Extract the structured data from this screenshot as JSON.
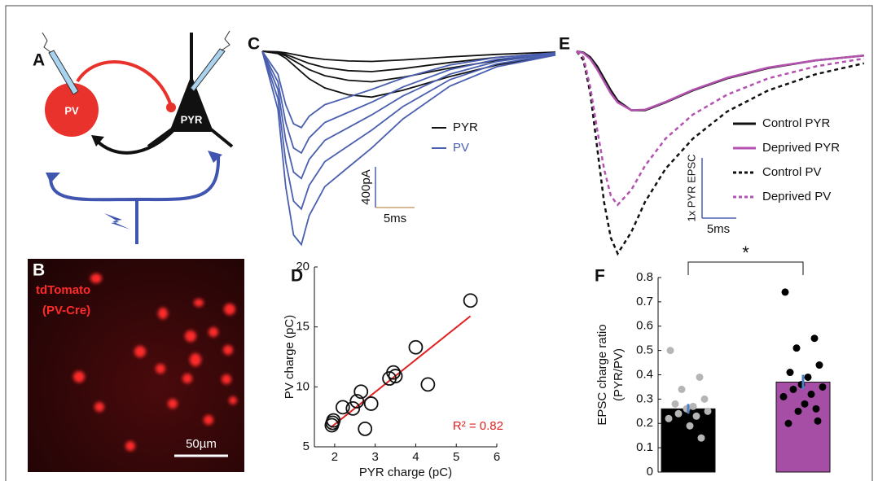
{
  "panel_labels": [
    "A",
    "B",
    "C",
    "D",
    "E",
    "F"
  ],
  "diagram_a": {
    "nodes": [
      {
        "label": "PV"
      },
      {
        "label": "PYR"
      }
    ]
  },
  "image_b": {
    "label_lines": [
      "tdTomato",
      "(PV-Cre)"
    ],
    "scale_bar": "50µm"
  },
  "chart_data": [
    {
      "type": "traces",
      "x": [
        0,
        2,
        3,
        4,
        5,
        6,
        8,
        11,
        14,
        18,
        24,
        30,
        37.5
      ],
      "groups": [
        {
          "name": "PYR",
          "color": "#111111",
          "traces": [
            [
              0,
              -23,
              -68,
              -135,
              -203,
              -270,
              -360,
              -428,
              -450,
              -383,
              -248,
              -135,
              -36
            ],
            [
              0,
              -15,
              -45,
              -90,
              -135,
              -180,
              -240,
              -285,
              -300,
              -255,
              -165,
              -90,
              -24
            ],
            [
              0,
              -10,
              -30,
              -60,
              -90,
              -120,
              -160,
              -190,
              -200,
              -170,
              -110,
              -60,
              -16
            ],
            [
              0,
              -5,
              -15,
              -30,
              -45,
              -60,
              -80,
              -95,
              -100,
              -85,
              -55,
              -30,
              -8
            ]
          ]
        },
        {
          "name": "PV",
          "color": "#4a5fb0",
          "traces": [
            [
              0,
              -570,
              -1330,
              -1805,
              -1900,
              -1615,
              -1330,
              -1140,
              -950,
              -665,
              -342,
              -152,
              -38
            ],
            [
              0,
              -465,
              -1085,
              -1473,
              -1550,
              -1318,
              -1085,
              -930,
              -775,
              -543,
              -279,
              -124,
              -31
            ],
            [
              0,
              -375,
              -875,
              -1188,
              -1250,
              -1063,
              -875,
              -750,
              -625,
              -438,
              -225,
              -100,
              -25
            ],
            [
              0,
              -300,
              -700,
              -950,
              -1000,
              -850,
              -700,
              -600,
              -500,
              -350,
              -180,
              -80,
              -20
            ],
            [
              0,
              -225,
              -525,
              -713,
              -750,
              -638,
              -525,
              -450,
              -375,
              -263,
              -135,
              -60,
              -15
            ]
          ]
        }
      ],
      "scale_x": {
        "value": 5,
        "label": "5ms"
      },
      "scale_y": {
        "value": 400,
        "label": "400pA"
      }
    },
    {
      "type": "scatter",
      "x": [
        1.93,
        1.95,
        1.97,
        2.2,
        2.45,
        2.55,
        2.65,
        2.75,
        2.9,
        3.35,
        3.45,
        3.5,
        4.0,
        4.3,
        5.35
      ],
      "y": [
        6.8,
        7.0,
        7.2,
        8.3,
        8.2,
        8.8,
        9.6,
        6.5,
        8.6,
        10.7,
        11.2,
        10.9,
        13.3,
        10.2,
        17.2
      ],
      "fit": {
        "x": [
          1.9,
          5.35
        ],
        "y": [
          6.6,
          15.9
        ],
        "color": "#e02020"
      },
      "annotation": "R² = 0.82",
      "xlabel": "PYR charge (pC)",
      "ylabel": "PV charge (pC)",
      "xlim": [
        1.5,
        6
      ],
      "ylim": [
        5,
        20
      ],
      "xticks": [
        2,
        3,
        4,
        5,
        6
      ],
      "yticks": [
        5,
        10,
        15,
        20
      ]
    },
    {
      "type": "line",
      "x": [
        0,
        1,
        2,
        3,
        4,
        5,
        6,
        8,
        10,
        13,
        17,
        22,
        28,
        35,
        42
      ],
      "series": [
        {
          "name": "Control PYR",
          "color": "#111111",
          "dashed": false,
          "values": [
            0,
            -0.02,
            -0.1,
            -0.25,
            -0.45,
            -0.65,
            -0.82,
            -0.98,
            -0.98,
            -0.85,
            -0.65,
            -0.45,
            -0.28,
            -0.15,
            -0.07
          ]
        },
        {
          "name": "Deprived PYR",
          "color": "#b452b0",
          "dashed": false,
          "values": [
            0,
            -0.03,
            -0.13,
            -0.3,
            -0.5,
            -0.7,
            -0.85,
            -0.98,
            -0.97,
            -0.84,
            -0.64,
            -0.44,
            -0.27,
            -0.15,
            -0.07
          ]
        },
        {
          "name": "Control PV",
          "color": "#111111",
          "dashed": true,
          "values": [
            0,
            -0.15,
            -0.7,
            -1.6,
            -2.5,
            -3.1,
            -3.36,
            -3.0,
            -2.5,
            -1.95,
            -1.45,
            -1.0,
            -0.65,
            -0.38,
            -0.2
          ]
        },
        {
          "name": "Deprived PV",
          "color": "#b452b0",
          "dashed": true,
          "values": [
            0,
            -0.1,
            -0.6,
            -1.3,
            -1.95,
            -2.4,
            -2.55,
            -2.3,
            -1.9,
            -1.45,
            -1.05,
            -0.72,
            -0.45,
            -0.25,
            -0.12
          ]
        }
      ],
      "scale_x": {
        "value": 5,
        "label": "5ms"
      },
      "scale_y": {
        "value": 1,
        "label": "1x PYR EPSC"
      }
    },
    {
      "type": "bar",
      "categories": [
        null,
        null
      ],
      "values": [
        0.26,
        0.37
      ],
      "errors": [
        0.02,
        0.03
      ],
      "colors": [
        "#000000",
        "#a64ea6"
      ],
      "points": [
        [
          0.5,
          0.39,
          0.34,
          0.3,
          0.28,
          0.27,
          0.26,
          0.25,
          0.24,
          0.23,
          0.22,
          0.19,
          0.14
        ],
        [
          0.74,
          0.55,
          0.51,
          0.44,
          0.41,
          0.39,
          0.36,
          0.35,
          0.34,
          0.32,
          0.31,
          0.28,
          0.26,
          0.25,
          0.21,
          0.2
        ]
      ],
      "point_colors": [
        "#b5b5b5",
        "#000000"
      ],
      "ylabel_lines": [
        "EPSC charge ratio",
        "(PYR/PV)"
      ],
      "significance": "*",
      "ylim": [
        0,
        0.8
      ],
      "yticks": [
        0,
        0.1,
        0.2,
        0.3,
        0.4,
        0.5,
        0.6,
        0.7,
        0.8
      ]
    }
  ]
}
